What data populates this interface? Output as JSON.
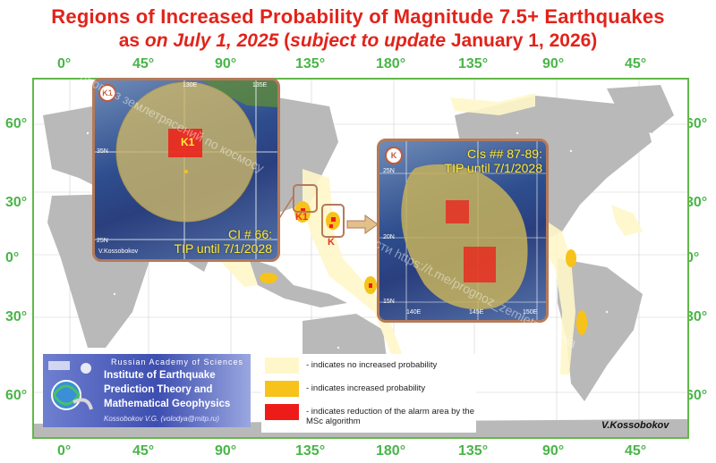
{
  "title": {
    "line1": "Regions of Increased Probability of Magnitude 7.5+ Earthquakes",
    "line2_a": "as",
    "line2_b": "on July 1, 2025",
    "line2_c": "(",
    "line2_d": "subject to update",
    "line2_e": "January 1, 2026)"
  },
  "longitude_labels": [
    "0°",
    "45°",
    "90°",
    "135°",
    "180°",
    "135°",
    "90°",
    "45°"
  ],
  "latitude_labels_left": [
    "60°",
    "30°",
    "0°",
    "30°",
    "60°"
  ],
  "latitude_labels_right": [
    "60°",
    "30°",
    "0°",
    "30°",
    "60°"
  ],
  "insets": {
    "k1": {
      "badge": "K1",
      "marker": "K1",
      "caption_line1": "CI # 66:",
      "caption_line2": "TIP until 7/1/2028",
      "author": "V.Kossobokov",
      "tick_top_1": "130E",
      "tick_top_2": "135E",
      "tick_left_1": "35N",
      "tick_left_2": "25N"
    },
    "k": {
      "badge": "K",
      "caption_line1": "CIs ## 87-89:",
      "caption_line2": "TIP until 7/1/2028",
      "tick_left_1": "25N",
      "tick_left_2": "20N",
      "tick_left_3": "15N",
      "tick_bottom_1": "140E",
      "tick_bottom_2": "145E",
      "tick_bottom_3": "150E"
    }
  },
  "map_markers": {
    "k1": "K1",
    "k": "K"
  },
  "legend": {
    "items": [
      {
        "color": "#fff7c9",
        "text": "- indicates no increased probability"
      },
      {
        "color": "#f7c21a",
        "text": "- indicates increased probability"
      },
      {
        "color": "#ee1c18",
        "text": "- indicates reduction of the alarm area by the MSc algorithm"
      }
    ]
  },
  "institute": {
    "top": "Russian Academy of Sciences",
    "line1": "Institute of Earthquake",
    "line2": "Prediction Theory and",
    "line3": "Mathematical Geophysics",
    "author": "Kossobokov V.G. (volodya@mitp.ru)"
  },
  "signature": "V.Kossobokov",
  "watermarks": {
    "w1": "прогноз землетрясений по космосу",
    "w2": "новости https://t.me/prognoz_zemletryasenia"
  },
  "colors": {
    "title": "#e2231a",
    "degree_labels": "#49b548",
    "frame": "#62b848",
    "land": "#b7b7b7",
    "no_increase": "#fff7c9",
    "increase": "#f7c21a",
    "reduction": "#ee1c18"
  }
}
